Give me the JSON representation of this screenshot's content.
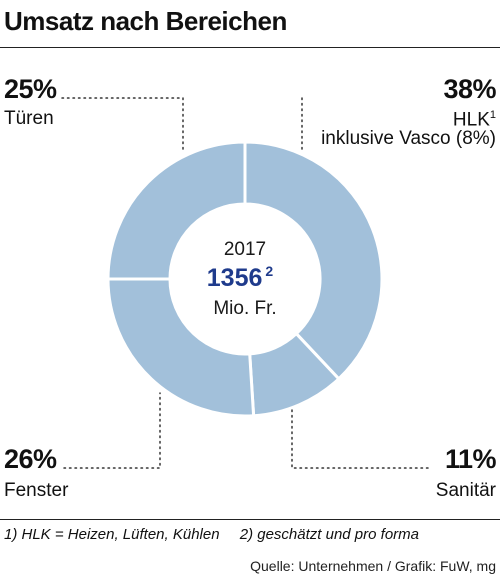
{
  "header": {
    "title": "Umsatz nach Bereichen"
  },
  "chart_data": {
    "type": "pie",
    "donut": true,
    "title": "Umsatz nach Bereichen",
    "center": {
      "year": "2017",
      "value": "1356",
      "value_note": "2",
      "unit": "Mio. Fr."
    },
    "segments": [
      {
        "name": "HLK",
        "note": "1",
        "detail": "inklusive Vasco (8%)",
        "value": 38,
        "label": "38%"
      },
      {
        "name": "Sanitär",
        "value": 11,
        "label": "11%"
      },
      {
        "name": "Fenster",
        "value": 26,
        "label": "26%"
      },
      {
        "name": "Türen",
        "value": 25,
        "label": "25%"
      }
    ],
    "colors": {
      "segment": "#a2c0da",
      "separator": "#ffffff",
      "center_value": "#1f3b8c",
      "leader": "#333333"
    }
  },
  "footnotes": [
    "1) HLK = Heizen, Lüften, Kühlen",
    "2) geschätzt und pro forma"
  ],
  "source": "Quelle: Unternehmen / Grafik: FuW, mg"
}
